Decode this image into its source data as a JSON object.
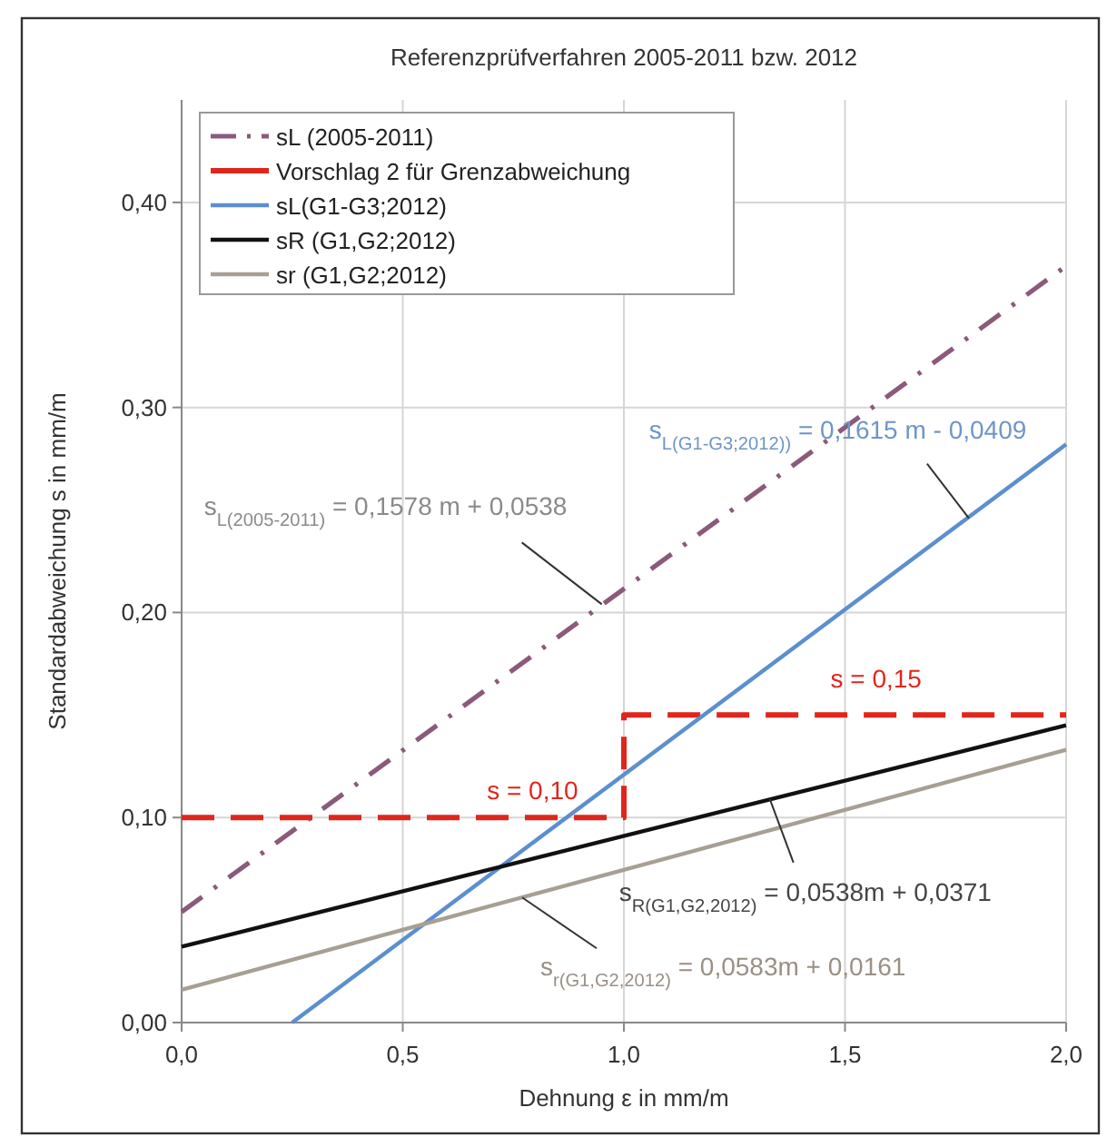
{
  "chart_data": {
    "type": "line",
    "title": "Referenzprüfverfahren 2005-2011 bzw. 2012",
    "xlabel": "Dehnung ε in mm/m",
    "ylabel": "Standardabweichung s in mm/m",
    "xlim": [
      0,
      2
    ],
    "ylim": [
      0,
      0.45
    ],
    "xticks": [
      {
        "value": 0,
        "label": "0,0"
      },
      {
        "value": 0.5,
        "label": "0,5"
      },
      {
        "value": 1,
        "label": "1,0"
      },
      {
        "value": 1.5,
        "label": "1,5"
      },
      {
        "value": 2,
        "label": "2,0"
      }
    ],
    "yticks": [
      {
        "value": 0,
        "label": "0,00"
      },
      {
        "value": 0.1,
        "label": "0,10"
      },
      {
        "value": 0.2,
        "label": "0,20"
      },
      {
        "value": 0.3,
        "label": "0,30"
      },
      {
        "value": 0.4,
        "label": "0,40"
      }
    ],
    "grid": true,
    "legend": "top left",
    "marker": "none",
    "series": [
      {
        "name": "sL (2005-2011)",
        "color": "#8b5a7a",
        "line_style": "dashdot",
        "x": [
          0,
          2
        ],
        "values": [
          0.054,
          0.369
        ]
      },
      {
        "name": "Vorschlag 2 für Grenzabweichung",
        "color": "#e0261c",
        "line_style": "dashed",
        "x": [
          0,
          1,
          1,
          2
        ],
        "values": [
          0.1,
          0.1,
          0.15,
          0.15
        ]
      },
      {
        "name": "sL(G1-G3;2012)",
        "color": "#5b8fd0",
        "line_style": "solid",
        "x": [
          0.25,
          2
        ],
        "values": [
          0,
          0.282
        ]
      },
      {
        "name": "sR (G1,G2;2012)",
        "color": "#111111",
        "line_style": "solid",
        "x": [
          0,
          2
        ],
        "values": [
          0.037,
          0.145
        ]
      },
      {
        "name": "sr (G1,G2;2012)",
        "color": "#a89f94",
        "line_style": "solid",
        "x": [
          0,
          2
        ],
        "values": [
          0.016,
          0.133
        ]
      }
    ],
    "annotations": [
      {
        "text": "s$_{L(2005-2011)}$ = 0,1578 m + 0,0538",
        "x": 0.95,
        "y": 0.204
      },
      {
        "text": "s$_{L(G1-G3;2012))}$ = 0,1615 m - 0,0409",
        "x": 1.78,
        "y": 0.246
      },
      {
        "text": "s = 0,15",
        "x": 1.5,
        "y": 0.15
      },
      {
        "text": "s = 0,10",
        "x": 0.6,
        "y": 0.1
      },
      {
        "text": "s$_{R(G1,G2,2012)}$ = 0,0538m + 0,0371",
        "x": 1.33,
        "y": 0.109
      },
      {
        "text": "s$_{r(G1,G2,2012)}$ = 0,0583m + 0,0161",
        "x": 0.77,
        "y": 0.061
      }
    ]
  }
}
